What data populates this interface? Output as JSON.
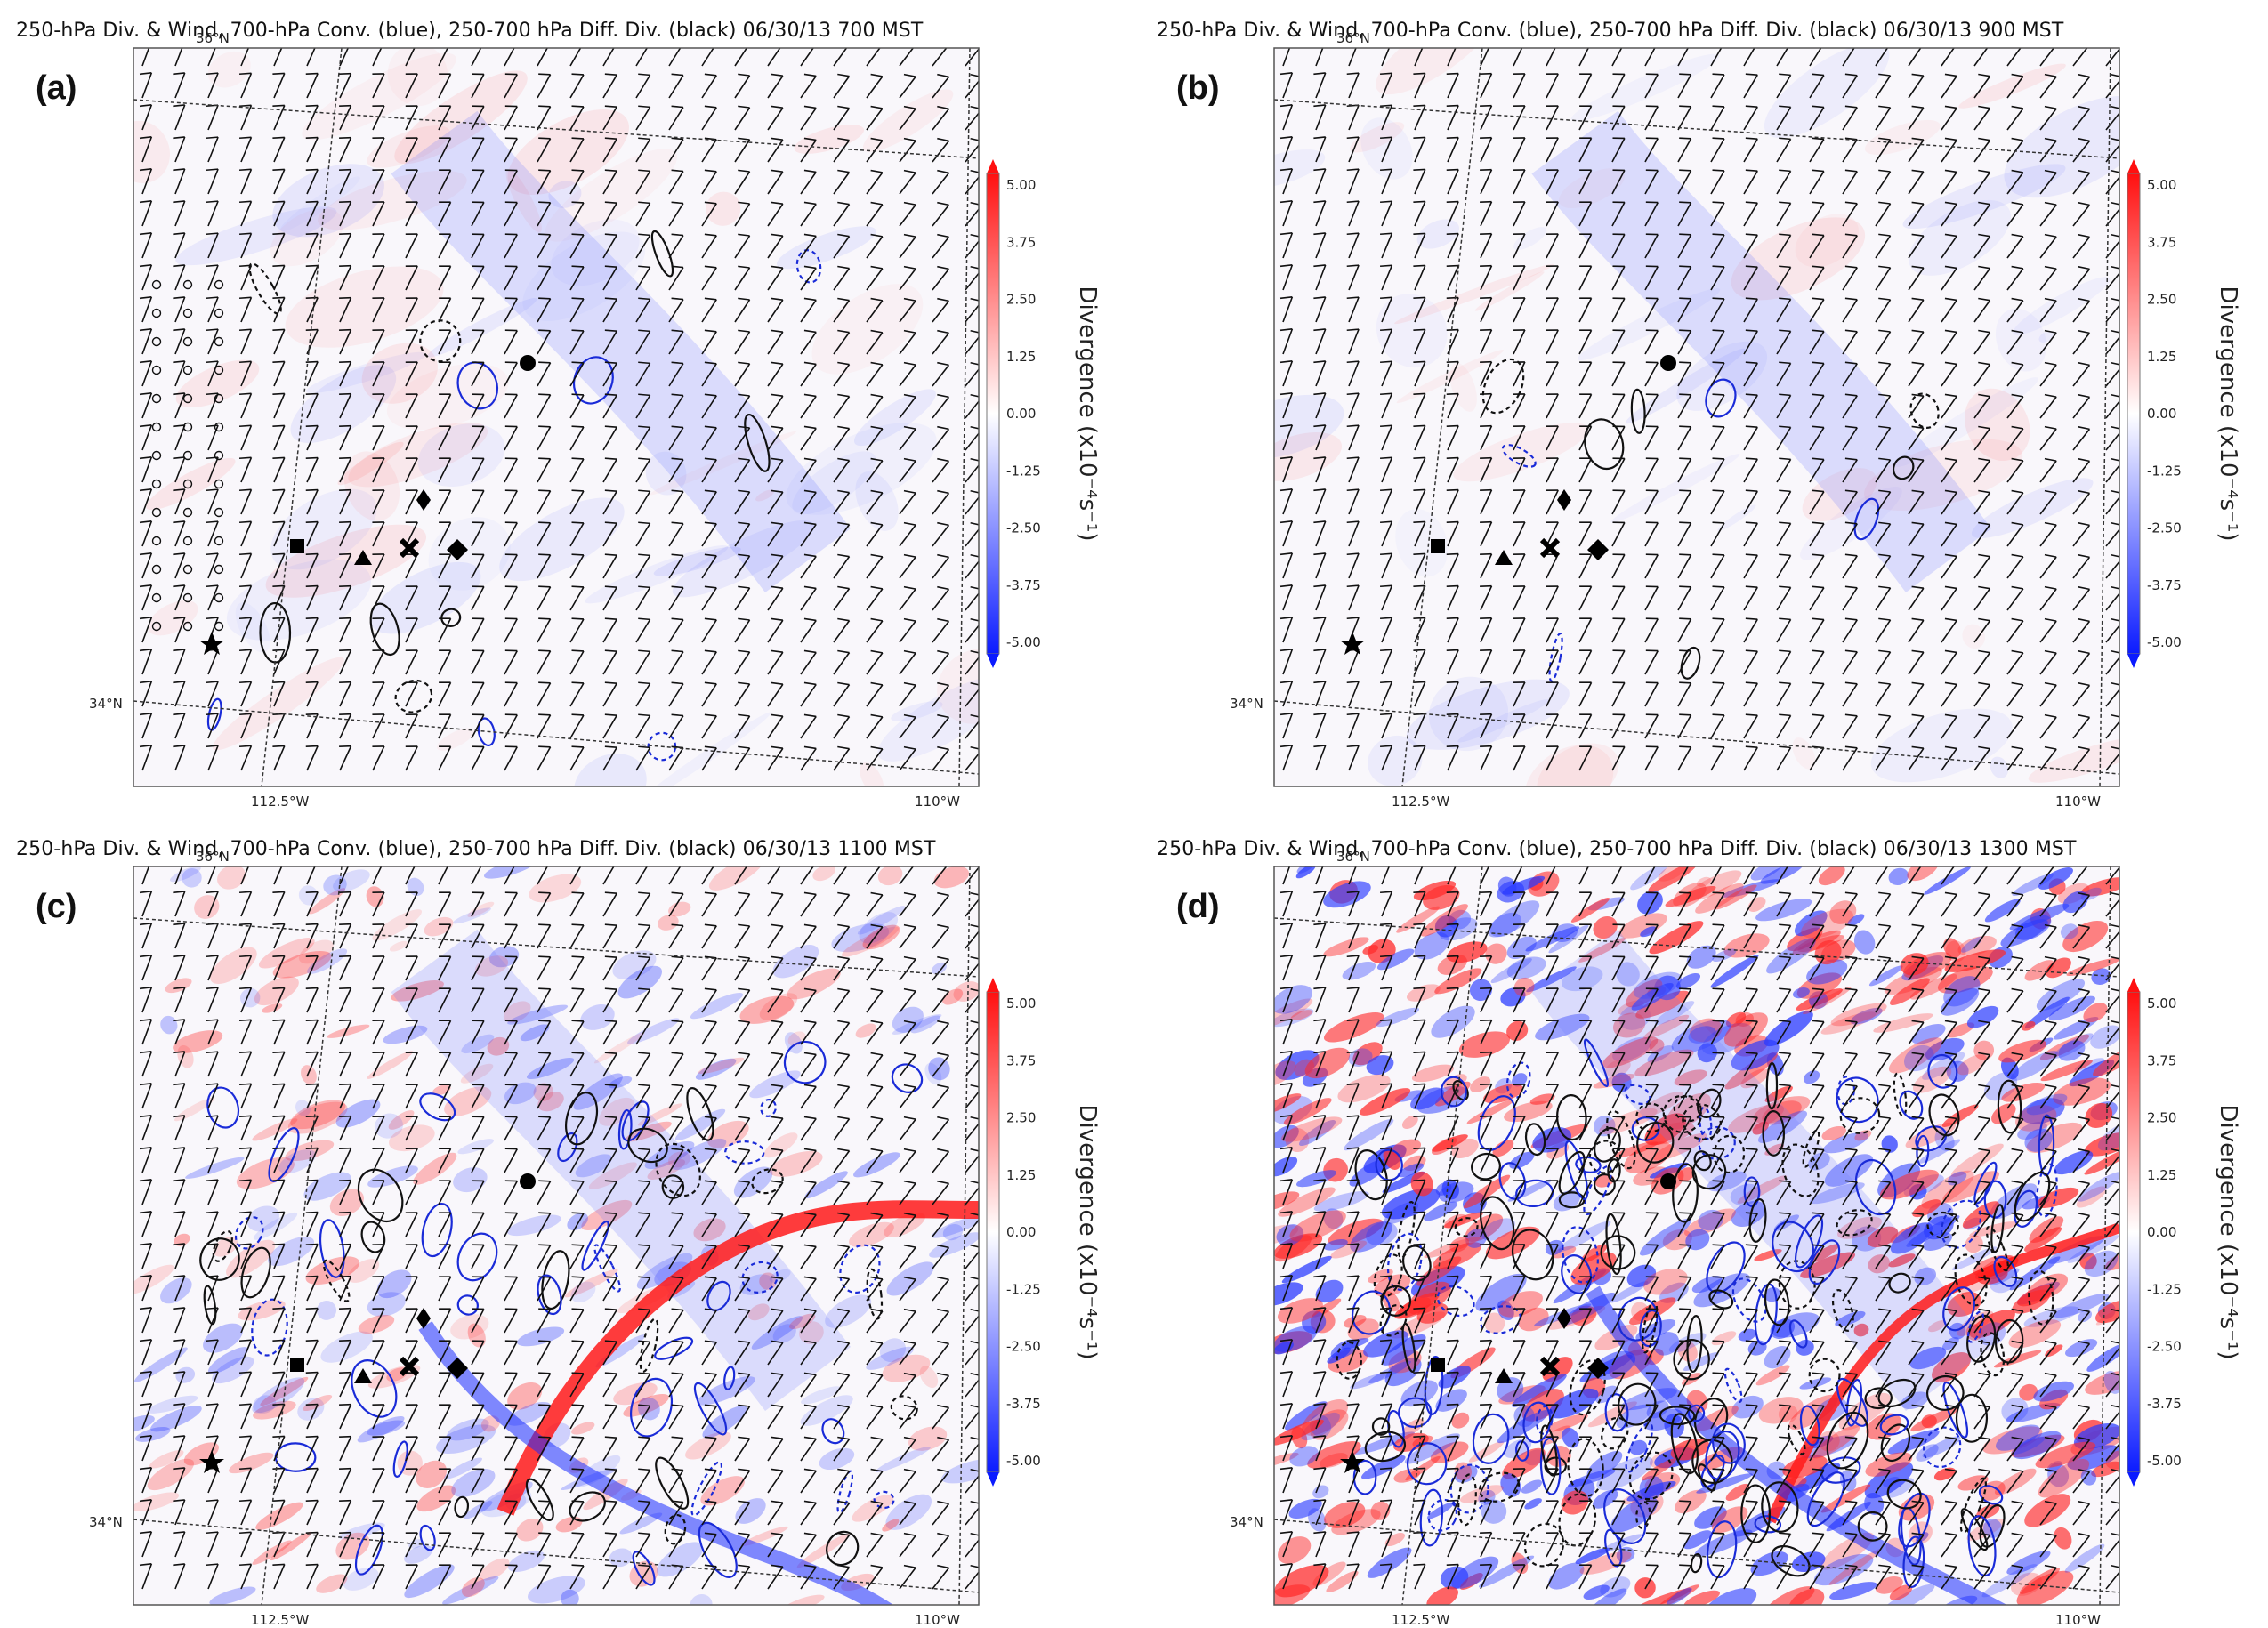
{
  "chart_data": [
    {
      "type": "heatmap",
      "panel_label": "(a)",
      "title": "250-hPa Div. & Wind, 700-hPa Conv. (blue), 250-700 hPa Diff. Div. (black) 06/30/13 700 MST",
      "lat_labels": [
        "36°N",
        "34°N"
      ],
      "lon_labels": [
        "112.5°W",
        "110°W"
      ],
      "colorbar": {
        "label": "Divergence (x10⁻⁴s⁻¹)",
        "ticks": [
          "5.00",
          "3.75",
          "2.50",
          "1.25",
          "0.00",
          "-1.25",
          "-2.50",
          "-3.75",
          "-5.00"
        ],
        "range": [
          -5.0,
          5.0
        ],
        "colors": [
          "#0b1bff",
          "#ffffff",
          "#ff1010"
        ]
      },
      "wind": "southwesterly barbs; calm circles along western edge"
    },
    {
      "type": "heatmap",
      "panel_label": "(b)",
      "title": "250-hPa Div. & Wind, 700-hPa Conv. (blue), 250-700 hPa Diff. Div. (black) 06/30/13 900 MST",
      "lat_labels": [
        "36°N",
        "34°N"
      ],
      "lon_labels": [
        "112.5°W",
        "110°W"
      ],
      "colorbar": {
        "label": "Divergence (x10⁻⁴s⁻¹)",
        "ticks": [
          "5.00",
          "3.75",
          "2.50",
          "1.25",
          "0.00",
          "-1.25",
          "-2.50",
          "-3.75",
          "-5.00"
        ],
        "range": [
          -5.0,
          5.0
        ],
        "colors": [
          "#0b1bff",
          "#ffffff",
          "#ff1010"
        ]
      },
      "wind": "southwesterly barbs"
    },
    {
      "type": "heatmap",
      "panel_label": "(c)",
      "title": "250-hPa Div. & Wind, 700-hPa Conv. (blue), 250-700 hPa Diff. Div. (black) 06/30/13 1100 MST",
      "lat_labels": [
        "36°N",
        "34°N"
      ],
      "lon_labels": [
        "112.5°W",
        "110°W"
      ],
      "colorbar": {
        "label": "Divergence (x10⁻⁴s⁻¹)",
        "ticks": [
          "5.00",
          "3.75",
          "2.50",
          "1.25",
          "0.00",
          "-1.25",
          "-2.50",
          "-3.75",
          "-5.00"
        ],
        "range": [
          -5.0,
          5.0
        ],
        "colors": [
          "#0b1bff",
          "#ffffff",
          "#ff1010"
        ]
      },
      "wind": "southwesterly barbs; red divergence arc in northeast, convergence band along the rim"
    },
    {
      "type": "heatmap",
      "panel_label": "(d)",
      "title": "250-hPa Div. & Wind, 700-hPa Conv. (blue), 250-700 hPa Diff. Div. (black) 06/30/13 1300 MST",
      "lat_labels": [
        "36°N",
        "34°N"
      ],
      "lon_labels": [
        "112.5°W",
        "110°W"
      ],
      "colorbar": {
        "label": "Divergence (x10⁻⁴s⁻¹)",
        "ticks": [
          "5.00",
          "3.75",
          "2.50",
          "1.25",
          "0.00",
          "-1.25",
          "-2.50",
          "-3.75",
          "-5.00"
        ],
        "range": [
          -5.0,
          5.0
        ],
        "colors": [
          "#0b1bff",
          "#ffffff",
          "#ff1010"
        ]
      },
      "wind": "southwesterly barbs; widespread convective divergence/convergence couplets"
    }
  ]
}
